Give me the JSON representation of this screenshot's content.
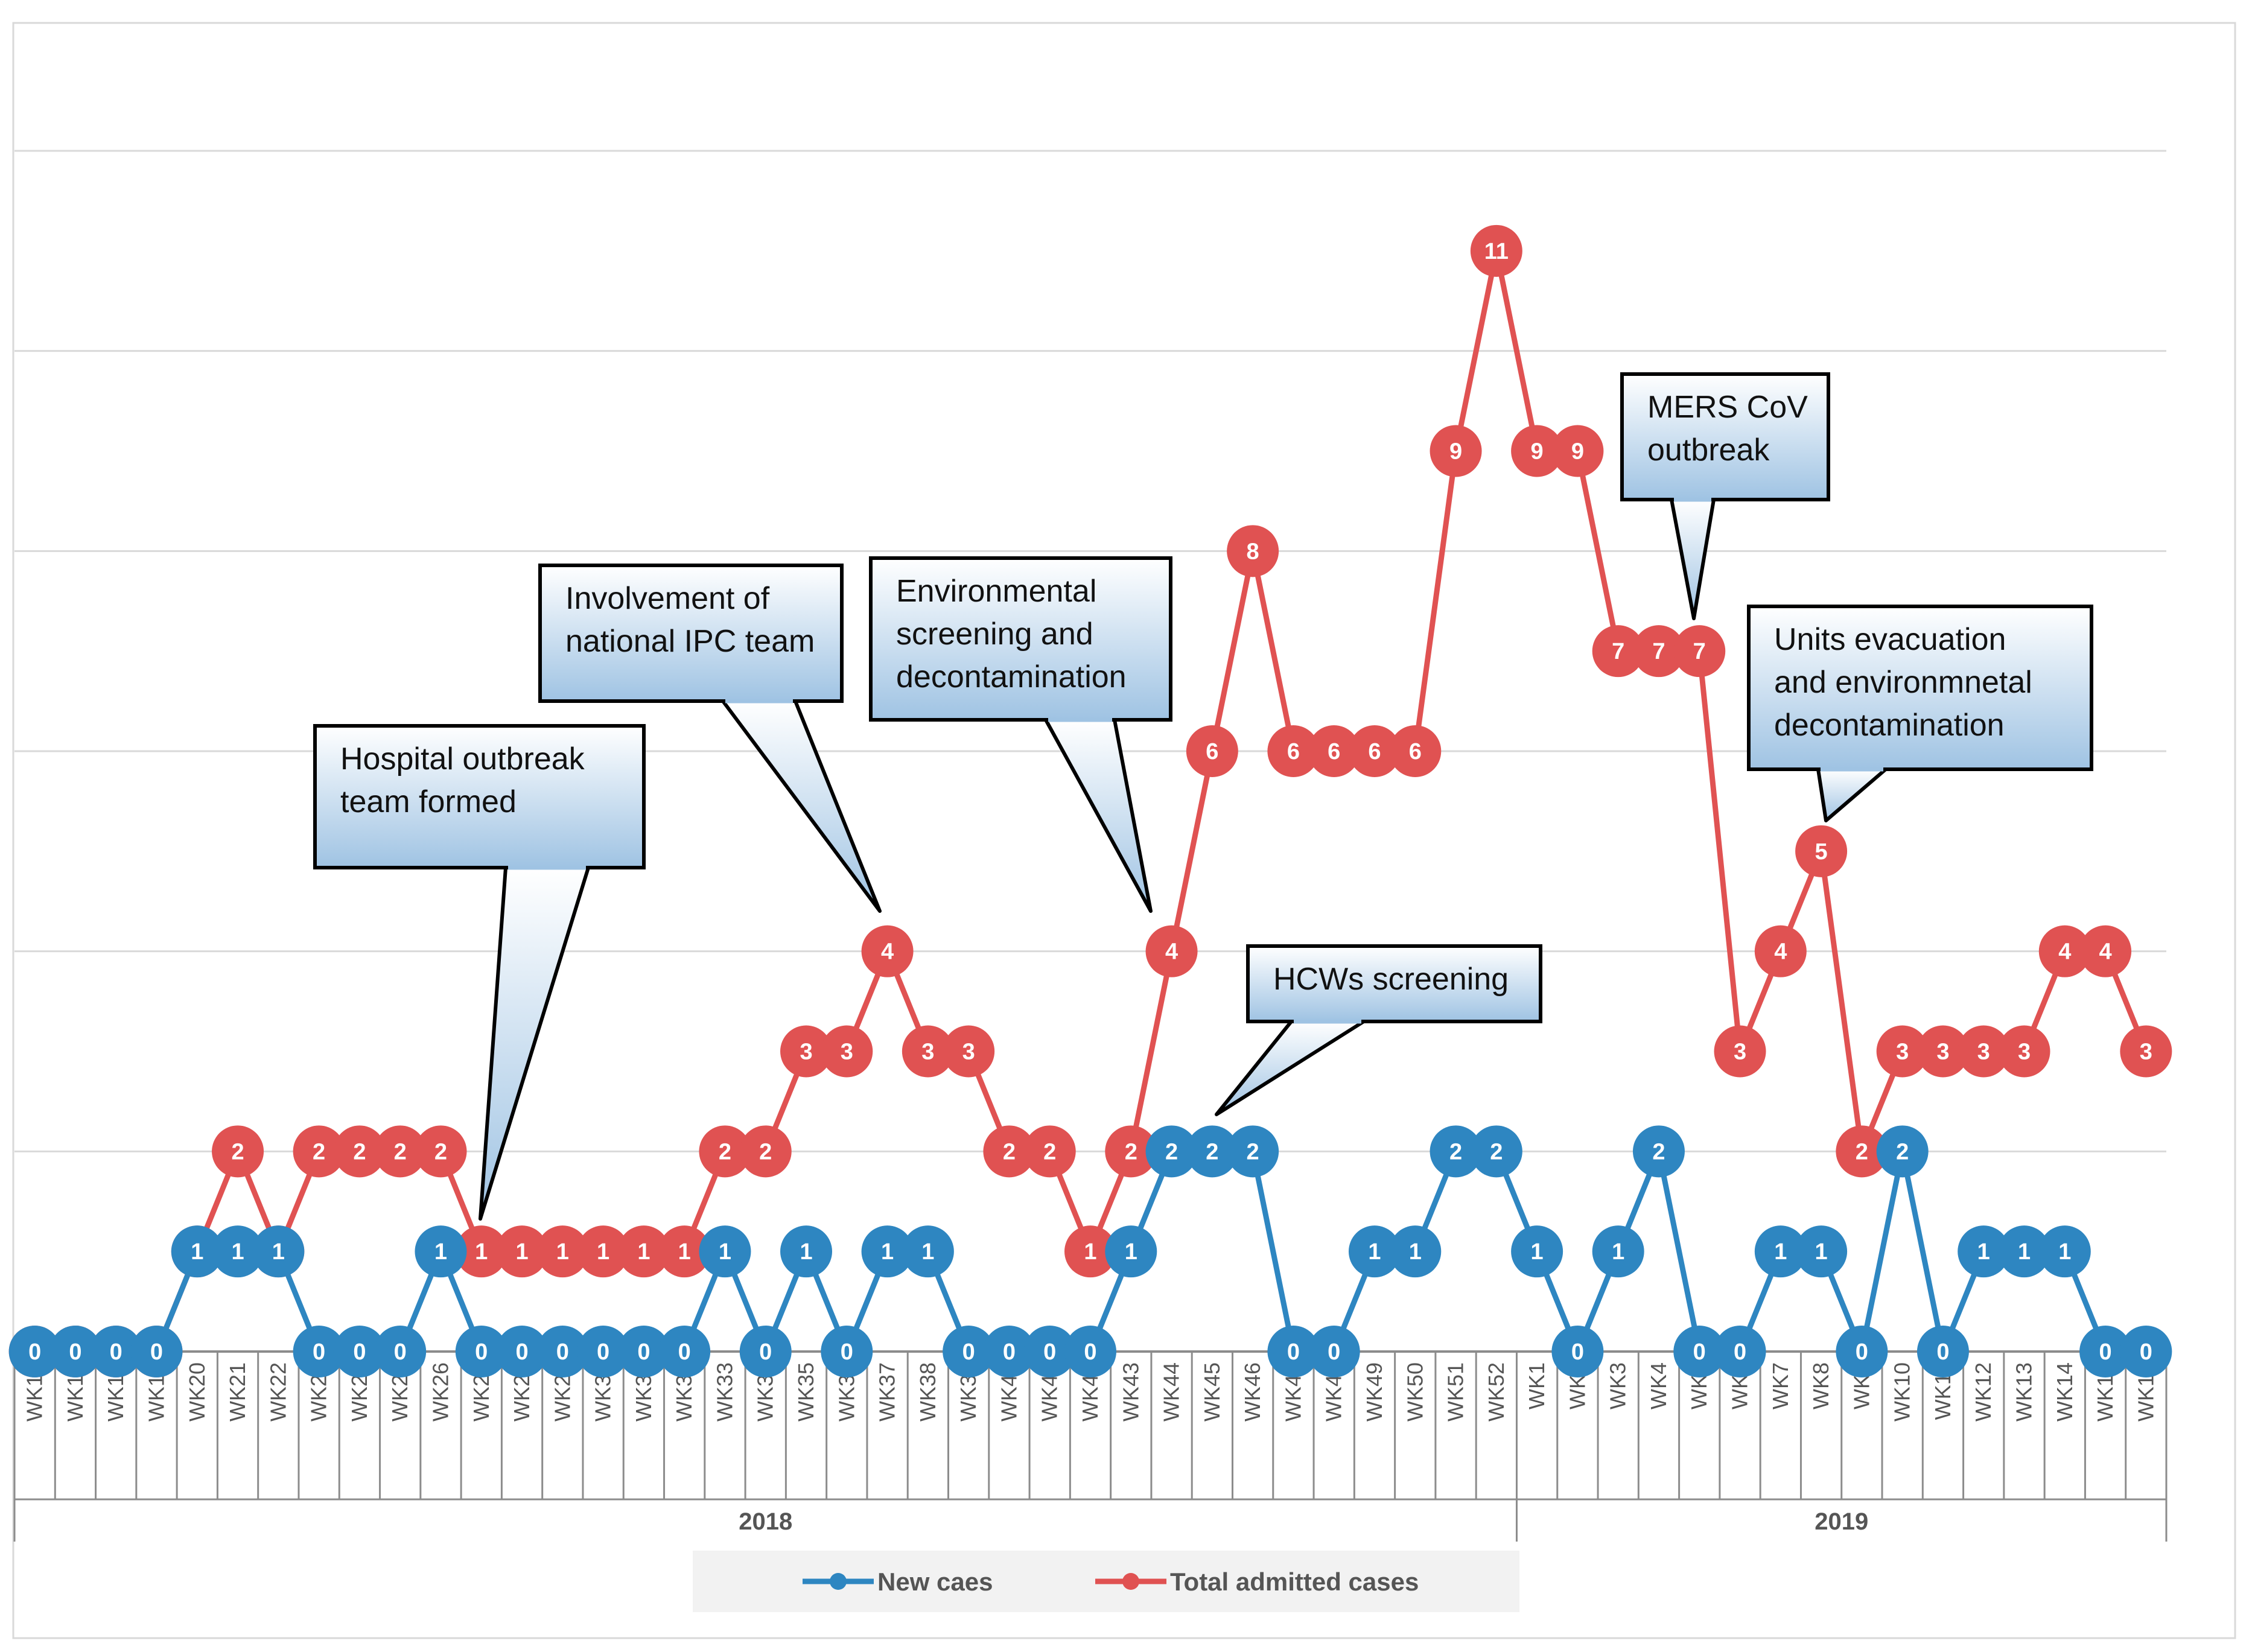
{
  "chart_data": {
    "type": "line",
    "categories": [
      "WK16",
      "WK17",
      "WK18",
      "WK19",
      "WK20",
      "WK21",
      "WK22",
      "WK23",
      "WK24",
      "WK25",
      "WK26",
      "WK27",
      "WK28",
      "WK29",
      "WK30",
      "WK31",
      "WK32",
      "WK33",
      "WK34",
      "WK35",
      "WK36",
      "WK37",
      "WK38",
      "WK39",
      "WK40",
      "WK41",
      "WK42",
      "WK43",
      "WK44",
      "WK45",
      "WK46",
      "WK47",
      "WK48",
      "WK49",
      "WK50",
      "WK51",
      "WK52",
      "WK1",
      "WK2",
      "WK3",
      "WK4",
      "WK5",
      "WK6",
      "WK7",
      "WK8",
      "WK9",
      "WK10",
      "WK11",
      "WK12",
      "WK13",
      "WK14",
      "WK15",
      "WK16"
    ],
    "year_groups": [
      {
        "label": "2018",
        "start": 0,
        "end": 36
      },
      {
        "label": "2019",
        "start": 37,
        "end": 52
      }
    ],
    "series": [
      {
        "name": "New caes",
        "color": "#2E86C1",
        "values": [
          0,
          0,
          0,
          0,
          1,
          1,
          1,
          0,
          0,
          0,
          1,
          0,
          0,
          0,
          0,
          0,
          0,
          1,
          0,
          1,
          0,
          1,
          1,
          0,
          0,
          0,
          0,
          1,
          2,
          2,
          2,
          0,
          0,
          1,
          1,
          2,
          2,
          1,
          0,
          1,
          2,
          0,
          0,
          1,
          1,
          0,
          2,
          0,
          1,
          1,
          1,
          0,
          0
        ]
      },
      {
        "name": "Total admitted cases",
        "color": "#E05252",
        "values": [
          0,
          0,
          0,
          0,
          1,
          2,
          1,
          2,
          2,
          2,
          2,
          1,
          1,
          1,
          1,
          1,
          1,
          2,
          2,
          3,
          3,
          4,
          3,
          3,
          2,
          2,
          1,
          2,
          4,
          6,
          8,
          6,
          6,
          6,
          6,
          9,
          11,
          9,
          9,
          7,
          7,
          7,
          3,
          4,
          5,
          2,
          3,
          3,
          3,
          3,
          4,
          4,
          3
        ]
      }
    ],
    "ylim": [
      0,
      12
    ],
    "grid": true,
    "legend": "bottom",
    "annotations": [
      {
        "text": "Hospital outbreak team formed",
        "lines": [
          "Hospital outbreak",
          "team formed"
        ],
        "series": 1,
        "index": 11
      },
      {
        "text": "Involvement of national IPC team",
        "lines": [
          "Involvement of",
          "national IPC team"
        ],
        "series": 1,
        "index": 21
      },
      {
        "text": "Environmental screening and decontamination",
        "lines": [
          "Environmental",
          "screening and",
          "decontamination"
        ],
        "series": 1,
        "index": 28
      },
      {
        "text": "HCWs screening",
        "lines": [
          "HCWs screening"
        ],
        "series": 0,
        "index": 29
      },
      {
        "text": "MERS CoV outbreak",
        "lines": [
          "MERS CoV",
          "outbreak"
        ],
        "series": 1,
        "index": 41
      },
      {
        "text": "Units evacuation and environmnetal decontamination",
        "lines": [
          "Units evacuation",
          "and environmnetal",
          "decontamination"
        ],
        "series": 1,
        "index": 44
      }
    ]
  }
}
